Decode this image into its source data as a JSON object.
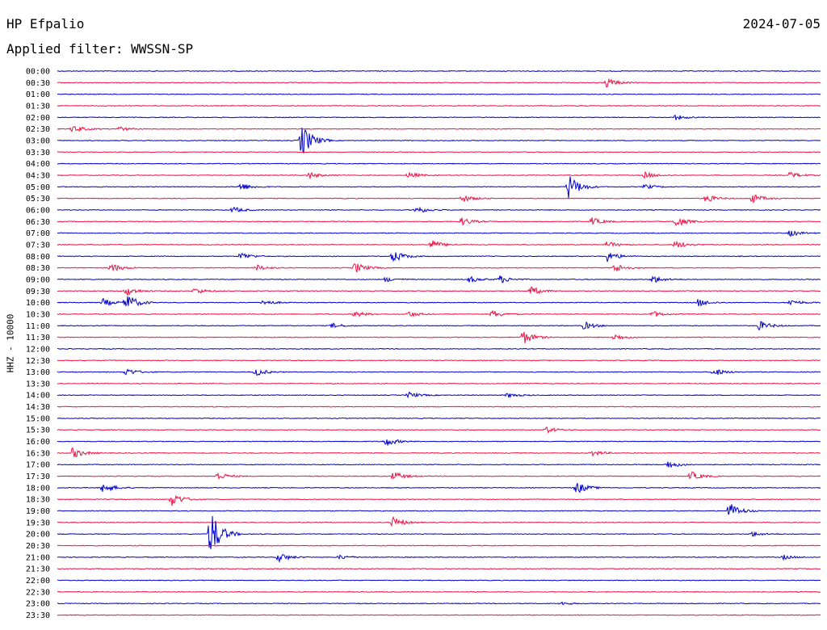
{
  "header": {
    "station": "HP Efpalio",
    "date": "2024-07-05",
    "filter": "Applied filter: WWSSN-SP"
  },
  "axis": {
    "ylabel": "HHZ - 10000"
  },
  "colors": {
    "trace_a": "#0000cc",
    "trace_b": "#ee1144",
    "text": "#000000"
  },
  "chart_data": {
    "type": "line",
    "ylabel": "HHZ - 10000",
    "tick_labels": [
      "00:00",
      "00:30",
      "01:00",
      "01:30",
      "02:00",
      "02:30",
      "03:00",
      "03:30",
      "04:00",
      "04:30",
      "05:00",
      "05:30",
      "06:00",
      "06:30",
      "07:00",
      "07:30",
      "08:00",
      "08:30",
      "09:00",
      "09:30",
      "10:00",
      "10:30",
      "11:00",
      "11:30",
      "12:00",
      "12:30",
      "13:00",
      "13:30",
      "14:00",
      "14:30",
      "15:00",
      "15:30",
      "16:00",
      "16:30",
      "17:00",
      "17:30",
      "18:00",
      "18:30",
      "19:00",
      "19:30",
      "20:00",
      "20:30",
      "21:00",
      "21:30",
      "22:00",
      "22:30",
      "23:00",
      "23:30"
    ],
    "line_colors": [
      "blue",
      "red"
    ],
    "events": [
      {
        "row": "00:30",
        "pos": 0.72,
        "amp": 6
      },
      {
        "row": "02:00",
        "pos": 0.81,
        "amp": 3
      },
      {
        "row": "02:30",
        "pos": 0.02,
        "amp": 5
      },
      {
        "row": "02:30",
        "pos": 0.08,
        "amp": 3
      },
      {
        "row": "03:00",
        "pos": 0.32,
        "amp": 22
      },
      {
        "row": "04:30",
        "pos": 0.33,
        "amp": 4
      },
      {
        "row": "04:30",
        "pos": 0.46,
        "amp": 4
      },
      {
        "row": "04:30",
        "pos": 0.77,
        "amp": 4
      },
      {
        "row": "04:30",
        "pos": 0.96,
        "amp": 4
      },
      {
        "row": "05:00",
        "pos": 0.24,
        "amp": 5
      },
      {
        "row": "05:00",
        "pos": 0.67,
        "amp": 16
      },
      {
        "row": "05:00",
        "pos": 0.77,
        "amp": 3
      },
      {
        "row": "05:30",
        "pos": 0.53,
        "amp": 5
      },
      {
        "row": "05:30",
        "pos": 0.85,
        "amp": 5
      },
      {
        "row": "05:30",
        "pos": 0.91,
        "amp": 6
      },
      {
        "row": "06:00",
        "pos": 0.23,
        "amp": 4
      },
      {
        "row": "06:00",
        "pos": 0.47,
        "amp": 5
      },
      {
        "row": "06:30",
        "pos": 0.53,
        "amp": 5
      },
      {
        "row": "06:30",
        "pos": 0.7,
        "amp": 5
      },
      {
        "row": "06:30",
        "pos": 0.81,
        "amp": 7
      },
      {
        "row": "07:00",
        "pos": 0.96,
        "amp": 4
      },
      {
        "row": "07:30",
        "pos": 0.49,
        "amp": 6
      },
      {
        "row": "07:30",
        "pos": 0.72,
        "amp": 4
      },
      {
        "row": "07:30",
        "pos": 0.81,
        "amp": 5
      },
      {
        "row": "08:00",
        "pos": 0.24,
        "amp": 5
      },
      {
        "row": "08:00",
        "pos": 0.44,
        "amp": 8
      },
      {
        "row": "08:00",
        "pos": 0.72,
        "amp": 7
      },
      {
        "row": "08:30",
        "pos": 0.07,
        "amp": 6
      },
      {
        "row": "08:30",
        "pos": 0.26,
        "amp": 4
      },
      {
        "row": "08:30",
        "pos": 0.39,
        "amp": 7
      },
      {
        "row": "08:30",
        "pos": 0.73,
        "amp": 6
      },
      {
        "row": "09:00",
        "pos": 0.43,
        "amp": 3
      },
      {
        "row": "09:00",
        "pos": 0.54,
        "amp": 4
      },
      {
        "row": "09:00",
        "pos": 0.58,
        "amp": 5
      },
      {
        "row": "09:00",
        "pos": 0.78,
        "amp": 5
      },
      {
        "row": "09:30",
        "pos": 0.09,
        "amp": 6
      },
      {
        "row": "09:30",
        "pos": 0.18,
        "amp": 4
      },
      {
        "row": "09:30",
        "pos": 0.62,
        "amp": 6
      },
      {
        "row": "10:00",
        "pos": 0.06,
        "amp": 5
      },
      {
        "row": "10:00",
        "pos": 0.09,
        "amp": 12
      },
      {
        "row": "10:00",
        "pos": 0.27,
        "amp": 4
      },
      {
        "row": "10:00",
        "pos": 0.84,
        "amp": 5
      },
      {
        "row": "10:00",
        "pos": 0.96,
        "amp": 4
      },
      {
        "row": "10:30",
        "pos": 0.39,
        "amp": 4
      },
      {
        "row": "10:30",
        "pos": 0.46,
        "amp": 4
      },
      {
        "row": "10:30",
        "pos": 0.57,
        "amp": 5
      },
      {
        "row": "10:30",
        "pos": 0.78,
        "amp": 4
      },
      {
        "row": "11:00",
        "pos": 0.36,
        "amp": 3
      },
      {
        "row": "11:00",
        "pos": 0.69,
        "amp": 5
      },
      {
        "row": "11:00",
        "pos": 0.92,
        "amp": 6
      },
      {
        "row": "11:30",
        "pos": 0.61,
        "amp": 9
      },
      {
        "row": "11:30",
        "pos": 0.73,
        "amp": 4
      },
      {
        "row": "13:00",
        "pos": 0.09,
        "amp": 5
      },
      {
        "row": "13:00",
        "pos": 0.26,
        "amp": 5
      },
      {
        "row": "13:00",
        "pos": 0.86,
        "amp": 5
      },
      {
        "row": "14:00",
        "pos": 0.46,
        "amp": 4
      },
      {
        "row": "14:00",
        "pos": 0.59,
        "amp": 3
      },
      {
        "row": "15:30",
        "pos": 0.64,
        "amp": 4
      },
      {
        "row": "16:00",
        "pos": 0.43,
        "amp": 6
      },
      {
        "row": "16:30",
        "pos": 0.02,
        "amp": 7
      },
      {
        "row": "16:30",
        "pos": 0.7,
        "amp": 4
      },
      {
        "row": "17:00",
        "pos": 0.8,
        "amp": 5
      },
      {
        "row": "17:30",
        "pos": 0.21,
        "amp": 5
      },
      {
        "row": "17:30",
        "pos": 0.44,
        "amp": 6
      },
      {
        "row": "17:30",
        "pos": 0.83,
        "amp": 6
      },
      {
        "row": "18:00",
        "pos": 0.06,
        "amp": 7
      },
      {
        "row": "18:00",
        "pos": 0.68,
        "amp": 8
      },
      {
        "row": "18:30",
        "pos": 0.15,
        "amp": 9
      },
      {
        "row": "19:00",
        "pos": 0.88,
        "amp": 11
      },
      {
        "row": "19:30",
        "pos": 0.44,
        "amp": 7
      },
      {
        "row": "20:00",
        "pos": 0.2,
        "amp": 32
      },
      {
        "row": "20:00",
        "pos": 0.91,
        "amp": 3
      },
      {
        "row": "21:00",
        "pos": 0.29,
        "amp": 6
      },
      {
        "row": "21:00",
        "pos": 0.37,
        "amp": 3
      },
      {
        "row": "21:00",
        "pos": 0.95,
        "amp": 3
      },
      {
        "row": "23:00",
        "pos": 0.66,
        "amp": 2
      }
    ]
  }
}
